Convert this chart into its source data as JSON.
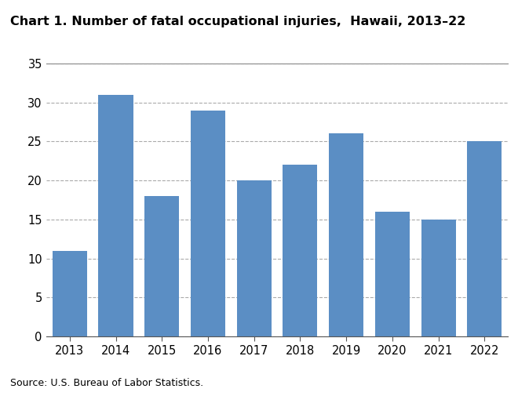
{
  "title": "Chart 1. Number of fatal occupational injuries,  Hawaii, 2013–22",
  "years": [
    2013,
    2014,
    2015,
    2016,
    2017,
    2018,
    2019,
    2020,
    2021,
    2022
  ],
  "values": [
    11,
    31,
    18,
    29,
    20,
    22,
    26,
    16,
    15,
    25
  ],
  "bar_color": "#5b8ec4",
  "ylim": [
    0,
    35
  ],
  "yticks": [
    0,
    5,
    10,
    15,
    20,
    25,
    30,
    35
  ],
  "source_text": "Source: U.S. Bureau of Labor Statistics.",
  "background_color": "#ffffff",
  "grid_color": "#aaaaaa",
  "top_border_color": "#888888",
  "title_fontsize": 11.5,
  "tick_fontsize": 10.5,
  "source_fontsize": 9.0
}
